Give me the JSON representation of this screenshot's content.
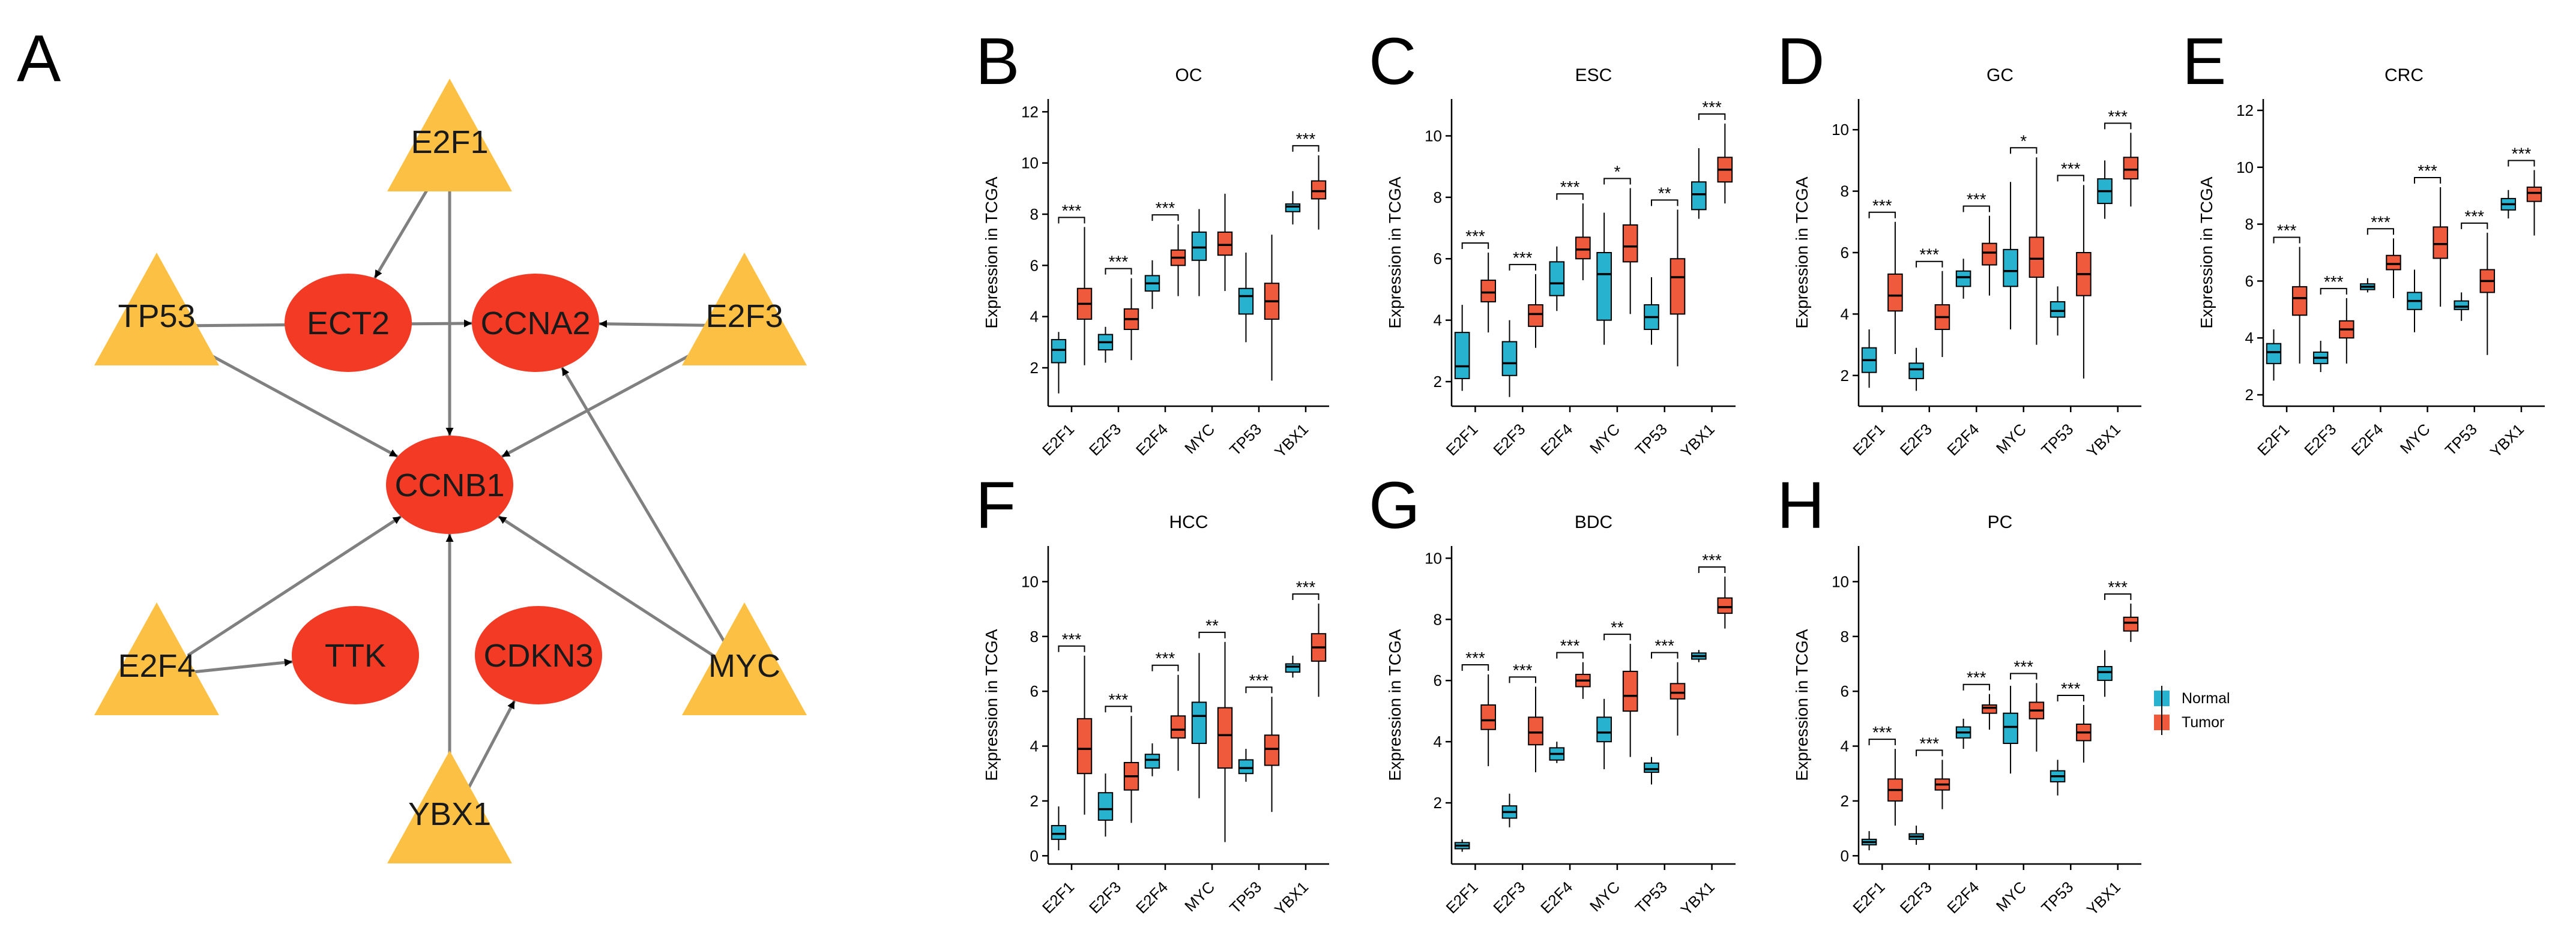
{
  "colors": {
    "tf": "#FCC144",
    "target": "#F23A24",
    "edge": "#808080",
    "normal": "#27B3D0",
    "tumor": "#F05A3C",
    "axis": "#000000"
  },
  "network": {
    "panel_label": "A",
    "tfs": [
      "E2F1",
      "TP53",
      "E2F3",
      "E2F4",
      "MYC",
      "YBX1"
    ],
    "targets": [
      "ECT2",
      "CCNA2",
      "CCNB1",
      "TTK",
      "CDKN3"
    ],
    "edges": [
      [
        "E2F1",
        "ECT2"
      ],
      [
        "E2F1",
        "CCNB1"
      ],
      [
        "TP53",
        "CCNA2"
      ],
      [
        "TP53",
        "CCNB1"
      ],
      [
        "E2F3",
        "CCNA2"
      ],
      [
        "E2F3",
        "CCNB1"
      ],
      [
        "E2F4",
        "CCNB1"
      ],
      [
        "E2F4",
        "TTK"
      ],
      [
        "MYC",
        "CCNB1"
      ],
      [
        "MYC",
        "CCNA2"
      ],
      [
        "YBX1",
        "CCNB1"
      ],
      [
        "YBX1",
        "CDKN3"
      ]
    ]
  },
  "legend": {
    "normal": "Normal",
    "tumor": "Tumor"
  },
  "chart_data": [
    {
      "panel": "B",
      "title": "OC",
      "type": "box",
      "ylabel": "Expression in TCGA",
      "categories": [
        "E2F1",
        "E2F3",
        "E2F4",
        "MYC",
        "TP53",
        "YBX1"
      ],
      "ylim": [
        0.5,
        12.5
      ],
      "yticks": [
        2,
        4,
        6,
        8,
        10,
        12
      ],
      "normal": [
        [
          1.0,
          2.2,
          2.7,
          3.1,
          3.4
        ],
        [
          2.2,
          2.7,
          3.0,
          3.3,
          3.6
        ],
        [
          4.3,
          5.0,
          5.3,
          5.6,
          6.2
        ],
        [
          4.8,
          6.2,
          6.7,
          7.3,
          8.2
        ],
        [
          3.0,
          4.1,
          4.8,
          5.1,
          6.5
        ],
        [
          7.6,
          8.1,
          8.3,
          8.4,
          8.9
        ]
      ],
      "tumor": [
        [
          2.1,
          3.9,
          4.5,
          5.1,
          7.5
        ],
        [
          2.3,
          3.5,
          3.9,
          4.3,
          5.5
        ],
        [
          4.8,
          6.0,
          6.3,
          6.6,
          7.6
        ],
        [
          5.0,
          6.4,
          6.8,
          7.3,
          8.8
        ],
        [
          1.5,
          3.9,
          4.6,
          5.3,
          7.2
        ],
        [
          7.4,
          8.6,
          8.9,
          9.3,
          10.3
        ]
      ],
      "sig": [
        "***",
        "***",
        "***",
        "",
        "",
        "***"
      ]
    },
    {
      "panel": "C",
      "title": "ESC",
      "type": "box",
      "ylabel": "Expression in TCGA",
      "categories": [
        "E2F1",
        "E2F3",
        "E2F4",
        "MYC",
        "TP53",
        "YBX1"
      ],
      "ylim": [
        1.2,
        11.2
      ],
      "yticks": [
        2,
        4,
        6,
        8,
        10
      ],
      "normal": [
        [
          1.7,
          2.1,
          2.5,
          3.6,
          4.5
        ],
        [
          1.5,
          2.2,
          2.6,
          3.3,
          4.0
        ],
        [
          4.3,
          4.8,
          5.2,
          5.9,
          6.4
        ],
        [
          3.2,
          4.0,
          5.5,
          6.2,
          7.5
        ],
        [
          3.2,
          3.7,
          4.1,
          4.5,
          5.4
        ],
        [
          7.3,
          7.6,
          8.1,
          8.5,
          9.6
        ]
      ],
      "tumor": [
        [
          3.6,
          4.6,
          4.9,
          5.3,
          6.2
        ],
        [
          3.1,
          3.8,
          4.2,
          4.5,
          5.5
        ],
        [
          5.3,
          6.0,
          6.3,
          6.7,
          7.8
        ],
        [
          4.2,
          5.9,
          6.4,
          7.1,
          8.3
        ],
        [
          2.5,
          4.2,
          5.4,
          6.0,
          7.6
        ],
        [
          7.8,
          8.5,
          8.9,
          9.3,
          10.4
        ]
      ],
      "sig": [
        "***",
        "***",
        "***",
        "*",
        "**",
        "***"
      ]
    },
    {
      "panel": "D",
      "title": "GC",
      "type": "box",
      "ylabel": "Expression in TCGA",
      "categories": [
        "E2F1",
        "E2F3",
        "E2F4",
        "MYC",
        "TP53",
        "YBX1"
      ],
      "ylim": [
        1.0,
        11.0
      ],
      "yticks": [
        2,
        4,
        6,
        8,
        10
      ],
      "normal": [
        [
          1.6,
          2.1,
          2.5,
          2.9,
          3.5
        ],
        [
          1.5,
          1.9,
          2.2,
          2.4,
          2.9
        ],
        [
          4.5,
          4.9,
          5.2,
          5.4,
          5.8
        ],
        [
          3.5,
          4.9,
          5.4,
          6.1,
          8.3
        ],
        [
          3.3,
          3.9,
          4.1,
          4.4,
          4.9
        ],
        [
          7.1,
          7.6,
          8.0,
          8.4,
          9.0
        ]
      ],
      "tumor": [
        [
          2.7,
          4.1,
          4.6,
          5.3,
          7.0
        ],
        [
          2.6,
          3.5,
          3.9,
          4.3,
          5.4
        ],
        [
          4.6,
          5.6,
          6.0,
          6.3,
          7.2
        ],
        [
          3.0,
          5.2,
          5.8,
          6.5,
          9.1
        ],
        [
          1.9,
          4.6,
          5.3,
          6.0,
          8.2
        ],
        [
          7.5,
          8.4,
          8.7,
          9.1,
          9.9
        ]
      ],
      "sig": [
        "***",
        "***",
        "***",
        "*",
        "***",
        "***"
      ]
    },
    {
      "panel": "E",
      "title": "CRC",
      "type": "box",
      "ylabel": "Expression in TCGA",
      "categories": [
        "E2F1",
        "E2F3",
        "E2F4",
        "MYC",
        "TP53",
        "YBX1"
      ],
      "ylim": [
        1.6,
        12.4
      ],
      "yticks": [
        2,
        4,
        6,
        8,
        10,
        12
      ],
      "normal": [
        [
          2.5,
          3.1,
          3.5,
          3.8,
          4.3
        ],
        [
          2.8,
          3.1,
          3.3,
          3.5,
          3.9
        ],
        [
          5.6,
          5.7,
          5.8,
          5.9,
          6.1
        ],
        [
          4.2,
          5.0,
          5.3,
          5.6,
          6.4
        ],
        [
          4.6,
          5.0,
          5.1,
          5.3,
          5.6
        ],
        [
          8.2,
          8.5,
          8.7,
          8.9,
          9.2
        ]
      ],
      "tumor": [
        [
          3.1,
          4.8,
          5.4,
          5.8,
          7.2
        ],
        [
          3.1,
          4.0,
          4.3,
          4.6,
          5.4
        ],
        [
          5.4,
          6.4,
          6.6,
          6.9,
          7.5
        ],
        [
          5.1,
          6.8,
          7.3,
          7.9,
          9.3
        ],
        [
          3.4,
          5.6,
          6.0,
          6.4,
          7.7
        ],
        [
          7.6,
          8.8,
          9.1,
          9.3,
          9.9
        ]
      ],
      "sig": [
        "***",
        "***",
        "***",
        "***",
        "***",
        "***"
      ]
    },
    {
      "panel": "F",
      "title": "HCC",
      "type": "box",
      "ylabel": "Expression in TCGA",
      "categories": [
        "E2F1",
        "E2F3",
        "E2F4",
        "MYC",
        "TP53",
        "YBX1"
      ],
      "ylim": [
        -0.3,
        11.3
      ],
      "yticks": [
        0,
        2,
        4,
        6,
        8,
        10
      ],
      "normal": [
        [
          0.2,
          0.6,
          0.8,
          1.1,
          1.8
        ],
        [
          0.7,
          1.3,
          1.7,
          2.3,
          3.0
        ],
        [
          2.9,
          3.2,
          3.5,
          3.7,
          4.1
        ],
        [
          2.1,
          4.1,
          5.1,
          5.6,
          7.4
        ],
        [
          2.7,
          3.0,
          3.2,
          3.5,
          3.9
        ],
        [
          6.5,
          6.7,
          6.9,
          7.0,
          7.3
        ]
      ],
      "tumor": [
        [
          1.5,
          3.0,
          3.9,
          5.0,
          7.3
        ],
        [
          1.2,
          2.4,
          2.9,
          3.4,
          5.1
        ],
        [
          3.1,
          4.3,
          4.6,
          5.1,
          6.6
        ],
        [
          0.5,
          3.2,
          4.4,
          5.4,
          7.8
        ],
        [
          1.6,
          3.3,
          3.9,
          4.4,
          5.8
        ],
        [
          5.8,
          7.1,
          7.6,
          8.1,
          9.2
        ]
      ],
      "sig": [
        "***",
        "***",
        "***",
        "**",
        "***",
        "***"
      ]
    },
    {
      "panel": "G",
      "title": "BDC",
      "type": "box",
      "ylabel": "Expression in TCGA",
      "categories": [
        "E2F1",
        "E2F3",
        "E2F4",
        "MYC",
        "TP53",
        "YBX1"
      ],
      "ylim": [
        0.0,
        10.4
      ],
      "yticks": [
        2,
        4,
        6,
        8,
        10
      ],
      "normal": [
        [
          0.4,
          0.5,
          0.6,
          0.7,
          0.8
        ],
        [
          1.2,
          1.5,
          1.7,
          1.9,
          2.3
        ],
        [
          3.3,
          3.4,
          3.6,
          3.8,
          4.0
        ],
        [
          3.1,
          4.0,
          4.3,
          4.8,
          5.4
        ],
        [
          2.6,
          3.0,
          3.1,
          3.3,
          3.5
        ],
        [
          6.6,
          6.7,
          6.8,
          6.9,
          7.0
        ]
      ],
      "tumor": [
        [
          3.2,
          4.4,
          4.7,
          5.2,
          6.2
        ],
        [
          3.0,
          3.9,
          4.3,
          4.8,
          5.8
        ],
        [
          5.4,
          5.8,
          6.0,
          6.2,
          6.6
        ],
        [
          3.5,
          5.0,
          5.5,
          6.3,
          7.2
        ],
        [
          4.2,
          5.4,
          5.6,
          5.9,
          6.6
        ],
        [
          7.7,
          8.2,
          8.4,
          8.7,
          9.4
        ]
      ],
      "sig": [
        "***",
        "***",
        "***",
        "**",
        "***",
        "***"
      ]
    },
    {
      "panel": "H",
      "title": "PC",
      "type": "box",
      "ylabel": "Expression in TCGA",
      "categories": [
        "E2F1",
        "E2F3",
        "E2F4",
        "MYC",
        "TP53",
        "YBX1"
      ],
      "ylim": [
        -0.3,
        11.3
      ],
      "yticks": [
        0,
        2,
        4,
        6,
        8,
        10
      ],
      "normal": [
        [
          0.2,
          0.4,
          0.5,
          0.6,
          0.9
        ],
        [
          0.4,
          0.6,
          0.7,
          0.8,
          1.1
        ],
        [
          3.9,
          4.3,
          4.5,
          4.7,
          5.0
        ],
        [
          3.0,
          4.1,
          4.7,
          5.2,
          6.2
        ],
        [
          2.2,
          2.7,
          2.9,
          3.1,
          3.5
        ],
        [
          5.8,
          6.4,
          6.7,
          6.9,
          7.5
        ]
      ],
      "tumor": [
        [
          1.1,
          2.0,
          2.4,
          2.8,
          3.9
        ],
        [
          1.7,
          2.4,
          2.6,
          2.8,
          3.5
        ],
        [
          4.6,
          5.2,
          5.4,
          5.5,
          5.9
        ],
        [
          3.8,
          5.0,
          5.3,
          5.6,
          6.3
        ],
        [
          3.4,
          4.2,
          4.5,
          4.8,
          5.5
        ],
        [
          7.8,
          8.2,
          8.5,
          8.7,
          9.2
        ]
      ],
      "sig": [
        "***",
        "***",
        "***",
        "***",
        "***",
        "***"
      ]
    }
  ]
}
